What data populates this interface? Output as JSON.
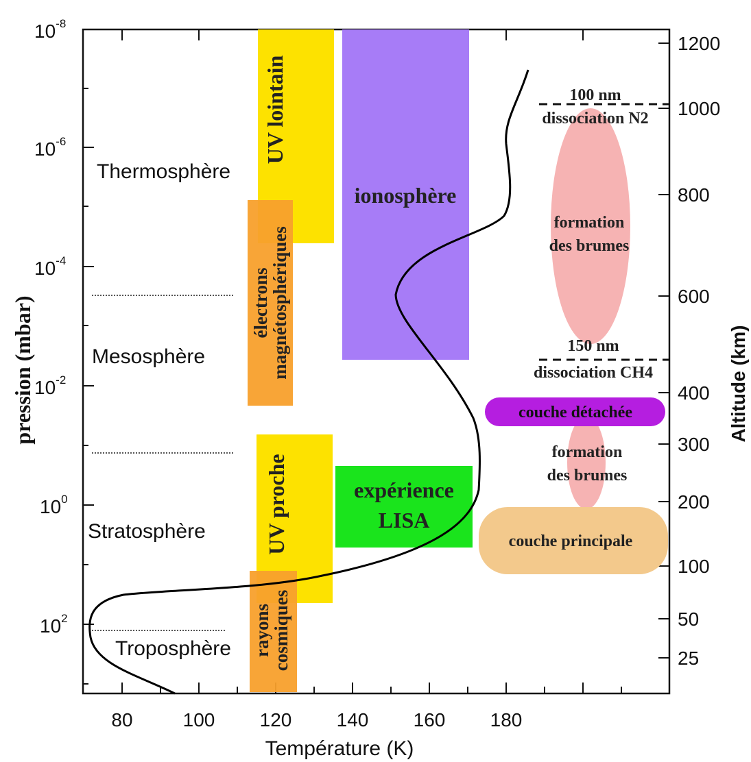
{
  "axes": {
    "y_left_label": "pression (mbar)",
    "y_right_label": "Altitude (km)",
    "x_label": "Température (K)",
    "x_ticks": [
      "80",
      "100",
      "120",
      "140",
      "160",
      "180"
    ],
    "y_left_ticks": [
      {
        "base": "10",
        "exp": "-8"
      },
      {
        "base": "10",
        "exp": "-6"
      },
      {
        "base": "10",
        "exp": "-4"
      },
      {
        "base": "10",
        "exp": "-2"
      },
      {
        "base": "10",
        "exp": "0"
      },
      {
        "base": "10",
        "exp": "2"
      }
    ],
    "y_right_ticks": [
      "1200",
      "1000",
      "800",
      "600",
      "400",
      "300",
      "200",
      "100",
      "50",
      "25"
    ]
  },
  "layers": {
    "thermosphere": "Thermosphère",
    "mesosphere": "Mesosphère",
    "stratosphere": "Stratosphère",
    "troposphere": "Troposphère"
  },
  "bands": {
    "uv_lointain": "UV lointain",
    "electrons_line1": "électrons",
    "electrons_line2": "magnétosphériques",
    "ionosphere": "ionosphère",
    "uv_proche": "UV proche",
    "rayons_line1": "rayons",
    "rayons_line2": "cosmiques",
    "lisa_line1": "expérience",
    "lisa_line2": "LISA"
  },
  "annotations": {
    "nm100": "100 nm",
    "dissociation_n2": "dissociation N2",
    "brumes1_line1": "formation",
    "brumes1_line2": "des brumes",
    "nm150": "150 nm",
    "dissociation_ch4": "dissociation CH4",
    "couche_detachee": "couche détachée",
    "brumes2_line1": "formation",
    "brumes2_line2": "des brumes",
    "couche_principale": "couche principale"
  },
  "colors": {
    "yellow": "#fde200",
    "orange": "#f8a02c",
    "violet": "#a77cf7",
    "green": "#1ae41c",
    "pink": "#f6b3b3",
    "magenta": "#b51ee0",
    "tan": "#f3c98c"
  }
}
